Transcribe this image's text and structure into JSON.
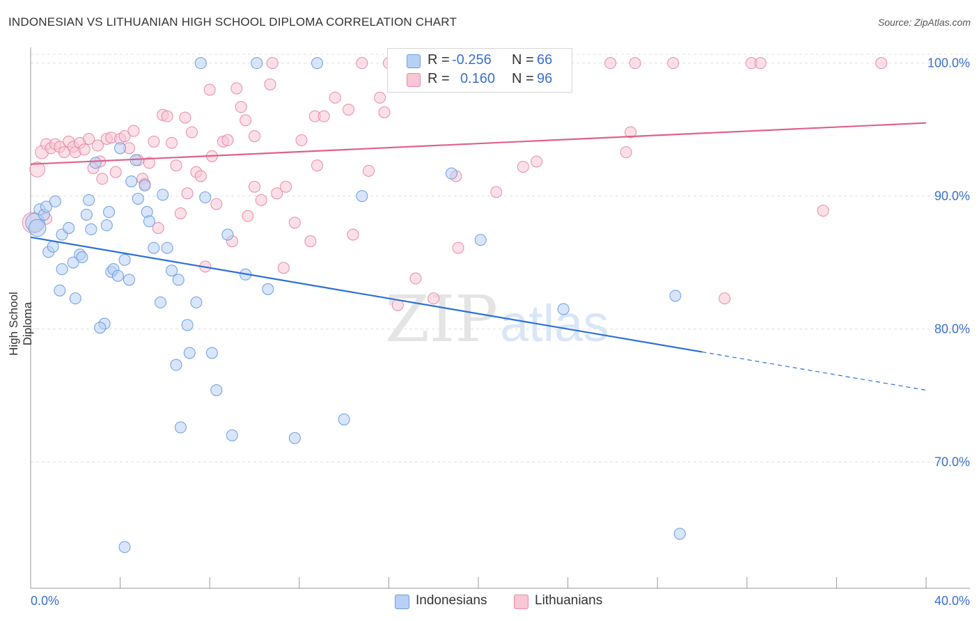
{
  "title": "INDONESIAN VS LITHUANIAN HIGH SCHOOL DIPLOMA CORRELATION CHART",
  "source": "Source: ZipAtlas.com",
  "watermark": {
    "zip": "ZIP",
    "atlas": "atlas"
  },
  "colors": {
    "indonesian_fill": "#b8d0f5",
    "indonesian_stroke": "#6a9ee0",
    "indonesian_line": "#2b6fd6",
    "lithuanian_fill": "#f8c6d4",
    "lithuanian_stroke": "#e88aa6",
    "lithuanian_line": "#e0608a",
    "tick_label": "#3a6fcf",
    "grid": "#dddddd"
  },
  "legend": {
    "rows": [
      {
        "r_label": "R =",
        "r_value": "-0.256",
        "n_label": "N =",
        "n_value": "66"
      },
      {
        "r_label": "R =",
        "r_value": "0.160",
        "n_label": "N =",
        "n_value": "96"
      }
    ]
  },
  "chart_data": {
    "type": "scatter",
    "title": "INDONESIAN VS LITHUANIAN HIGH SCHOOL DIPLOMA CORRELATION CHART",
    "ylabel": "High School Diploma",
    "xlabel": "",
    "xlim": [
      0,
      40
    ],
    "ylim": [
      60.5,
      101.5
    ],
    "x_tick_labels": [
      "0.0%",
      "40.0%"
    ],
    "y_ticks": [
      70,
      80,
      90,
      100
    ],
    "y_tick_labels": [
      "70.0%",
      "80.0%",
      "90.0%",
      "100.0%"
    ],
    "grid": true,
    "legend_position": "bottom",
    "series": [
      {
        "name": "Indonesians",
        "r": -0.256,
        "n": 66,
        "trend": {
          "solid_x": [
            0,
            30.0
          ],
          "dashed_x": [
            30.0,
            40.0
          ],
          "y_at_0": 86.9,
          "y_at_40": 75.4
        },
        "points": [
          [
            0.2,
            88.0,
            0.9
          ],
          [
            0.3,
            87.6,
            0.8
          ],
          [
            0.4,
            89.0,
            0.5
          ],
          [
            0.6,
            88.6,
            0.5
          ],
          [
            0.7,
            89.2,
            0.5
          ],
          [
            1.1,
            89.6,
            0.5
          ],
          [
            0.8,
            85.8,
            0.5
          ],
          [
            1.0,
            86.2,
            0.5
          ],
          [
            1.4,
            87.1,
            0.5
          ],
          [
            1.7,
            87.6,
            0.5
          ],
          [
            1.9,
            85.0,
            0.5
          ],
          [
            2.2,
            85.6,
            0.5
          ],
          [
            2.3,
            85.4,
            0.5
          ],
          [
            1.4,
            84.5,
            0.5
          ],
          [
            1.3,
            82.9,
            0.5
          ],
          [
            2.0,
            82.3,
            0.5
          ],
          [
            2.5,
            88.6,
            0.5
          ],
          [
            2.6,
            89.7,
            0.5
          ],
          [
            2.7,
            87.5,
            0.5
          ],
          [
            2.9,
            92.5,
            0.5
          ],
          [
            3.3,
            80.4,
            0.5
          ],
          [
            3.1,
            80.1,
            0.5
          ],
          [
            3.4,
            87.8,
            0.5
          ],
          [
            3.5,
            88.8,
            0.5
          ],
          [
            3.6,
            84.3,
            0.5
          ],
          [
            3.7,
            84.5,
            0.5
          ],
          [
            3.9,
            84.0,
            0.5
          ],
          [
            4.0,
            93.6,
            0.5
          ],
          [
            4.2,
            85.2,
            0.5
          ],
          [
            4.4,
            83.7,
            0.5
          ],
          [
            4.5,
            91.1,
            0.5
          ],
          [
            4.7,
            92.7,
            0.5
          ],
          [
            4.8,
            89.8,
            0.5
          ],
          [
            5.1,
            90.8,
            0.5
          ],
          [
            5.2,
            88.8,
            0.5
          ],
          [
            5.3,
            88.1,
            0.5
          ],
          [
            5.5,
            86.1,
            0.5
          ],
          [
            5.9,
            90.1,
            0.5
          ],
          [
            6.1,
            86.1,
            0.5
          ],
          [
            6.3,
            84.4,
            0.5
          ],
          [
            6.6,
            83.7,
            0.5
          ],
          [
            5.8,
            82.0,
            0.5
          ],
          [
            7.0,
            80.3,
            0.5
          ],
          [
            7.1,
            78.2,
            0.5
          ],
          [
            7.4,
            82.0,
            0.5
          ],
          [
            6.5,
            77.3,
            0.5
          ],
          [
            6.7,
            72.6,
            0.5
          ],
          [
            7.8,
            89.9,
            0.5
          ],
          [
            8.1,
            78.2,
            0.5
          ],
          [
            8.3,
            75.4,
            0.5
          ],
          [
            8.8,
            87.1,
            0.5
          ],
          [
            9.0,
            72.0,
            0.5
          ],
          [
            9.6,
            84.1,
            0.5
          ],
          [
            10.6,
            83.0,
            0.5
          ],
          [
            11.8,
            71.8,
            0.5
          ],
          [
            14.0,
            73.2,
            0.5
          ],
          [
            14.8,
            90.0,
            0.5
          ],
          [
            18.8,
            91.7,
            0.5
          ],
          [
            20.1,
            86.7,
            0.5
          ],
          [
            23.8,
            81.5,
            0.5
          ],
          [
            28.8,
            82.5,
            0.5
          ],
          [
            29.0,
            64.6,
            0.5
          ],
          [
            4.2,
            63.6,
            0.5
          ],
          [
            7.6,
            100.0,
            0.5
          ],
          [
            10.1,
            100.0,
            0.5
          ],
          [
            12.8,
            100.0,
            0.5
          ]
        ]
      },
      {
        "name": "Lithuanians",
        "r": 0.16,
        "n": 96,
        "trend": {
          "solid_x": [
            0,
            40.0
          ],
          "y_at_0": 92.4,
          "y_at_40": 95.5
        },
        "points": [
          [
            0.1,
            88.0,
            1.0
          ],
          [
            0.3,
            92.0,
            0.7
          ],
          [
            0.5,
            93.3,
            0.6
          ],
          [
            0.7,
            93.9,
            0.5
          ],
          [
            0.9,
            93.6,
            0.5
          ],
          [
            1.1,
            93.9,
            0.5
          ],
          [
            1.3,
            93.7,
            0.5
          ],
          [
            1.5,
            93.3,
            0.5
          ],
          [
            1.7,
            94.1,
            0.5
          ],
          [
            1.9,
            93.7,
            0.5
          ],
          [
            2.0,
            93.3,
            0.5
          ],
          [
            2.2,
            94.0,
            0.5
          ],
          [
            2.4,
            93.5,
            0.5
          ],
          [
            2.6,
            94.3,
            0.5
          ],
          [
            2.8,
            92.1,
            0.5
          ],
          [
            3.0,
            93.8,
            0.5
          ],
          [
            3.2,
            91.3,
            0.5
          ],
          [
            3.4,
            94.3,
            0.5
          ],
          [
            3.6,
            94.4,
            0.5
          ],
          [
            3.8,
            91.8,
            0.5
          ],
          [
            4.0,
            94.3,
            0.5
          ],
          [
            4.2,
            94.5,
            0.5
          ],
          [
            4.4,
            93.6,
            0.5
          ],
          [
            4.6,
            94.9,
            0.5
          ],
          [
            4.8,
            92.7,
            0.5
          ],
          [
            5.0,
            91.3,
            0.5
          ],
          [
            5.1,
            90.9,
            0.5
          ],
          [
            5.3,
            92.5,
            0.5
          ],
          [
            5.5,
            94.1,
            0.5
          ],
          [
            5.7,
            87.6,
            0.5
          ],
          [
            5.9,
            96.1,
            0.5
          ],
          [
            6.1,
            96.0,
            0.5
          ],
          [
            6.3,
            94.0,
            0.5
          ],
          [
            6.5,
            92.3,
            0.5
          ],
          [
            6.7,
            88.7,
            0.5
          ],
          [
            6.9,
            95.9,
            0.5
          ],
          [
            7.0,
            90.2,
            0.5
          ],
          [
            7.2,
            94.8,
            0.5
          ],
          [
            7.4,
            91.8,
            0.5
          ],
          [
            7.6,
            91.5,
            0.5
          ],
          [
            7.8,
            84.7,
            0.5
          ],
          [
            8.0,
            98.0,
            0.5
          ],
          [
            8.1,
            93.0,
            0.5
          ],
          [
            8.3,
            89.4,
            0.5
          ],
          [
            8.6,
            94.1,
            0.5
          ],
          [
            8.8,
            94.2,
            0.5
          ],
          [
            9.0,
            86.6,
            0.5
          ],
          [
            9.2,
            98.1,
            0.5
          ],
          [
            9.4,
            96.7,
            0.5
          ],
          [
            9.6,
            95.7,
            0.5
          ],
          [
            9.7,
            88.5,
            0.5
          ],
          [
            10.0,
            94.5,
            0.5
          ],
          [
            10.0,
            90.7,
            0.5
          ],
          [
            10.3,
            89.7,
            0.5
          ],
          [
            10.7,
            98.4,
            0.5
          ],
          [
            11.0,
            90.2,
            0.5
          ],
          [
            11.3,
            84.6,
            0.5
          ],
          [
            11.4,
            90.7,
            0.5
          ],
          [
            11.8,
            88.0,
            0.5
          ],
          [
            12.1,
            94.2,
            0.5
          ],
          [
            12.5,
            86.6,
            0.5
          ],
          [
            12.7,
            96.0,
            0.5
          ],
          [
            12.8,
            92.3,
            0.5
          ],
          [
            13.1,
            96.0,
            0.5
          ],
          [
            13.6,
            97.4,
            0.5
          ],
          [
            14.2,
            96.5,
            0.5
          ],
          [
            14.4,
            87.1,
            0.5
          ],
          [
            15.1,
            91.9,
            0.5
          ],
          [
            15.6,
            97.4,
            0.5
          ],
          [
            15.8,
            96.3,
            0.5
          ],
          [
            16.4,
            81.8,
            0.5
          ],
          [
            17.2,
            83.8,
            0.5
          ],
          [
            18.0,
            82.3,
            0.5
          ],
          [
            19.0,
            91.5,
            0.5
          ],
          [
            19.1,
            86.1,
            0.5
          ],
          [
            20.8,
            90.3,
            0.5
          ],
          [
            22.0,
            92.2,
            0.5
          ],
          [
            22.6,
            92.6,
            0.5
          ],
          [
            26.6,
            93.3,
            0.5
          ],
          [
            26.8,
            94.8,
            0.5
          ],
          [
            31.0,
            82.3,
            0.5
          ],
          [
            35.4,
            88.9,
            0.5
          ],
          [
            10.8,
            100.0,
            0.5
          ],
          [
            14.8,
            100.0,
            0.5
          ],
          [
            16.0,
            100.0,
            0.5
          ],
          [
            18.0,
            100.0,
            0.5
          ],
          [
            19.8,
            100.0,
            0.5
          ],
          [
            23.2,
            100.0,
            0.5
          ],
          [
            25.9,
            100.0,
            0.5
          ],
          [
            27.0,
            100.0,
            0.5
          ],
          [
            28.7,
            100.0,
            0.5
          ],
          [
            32.2,
            100.0,
            0.5
          ],
          [
            32.6,
            100.0,
            0.5
          ],
          [
            38.0,
            100.0,
            0.5
          ],
          [
            0.7,
            88.3,
            0.5
          ],
          [
            3.1,
            92.6,
            0.5
          ]
        ]
      }
    ]
  }
}
